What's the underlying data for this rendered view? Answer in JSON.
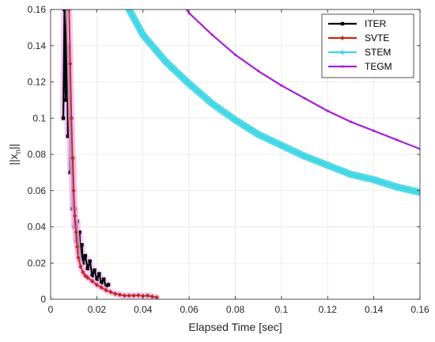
{
  "chart_data": {
    "type": "line",
    "title": "",
    "xlabel": "Elapsed Time [sec]",
    "ylabel": "||x",
    "ylabel_subscript": "n",
    "ylabel_suffix": "||",
    "xlim": [
      0,
      0.16
    ],
    "ylim": [
      0,
      0.16
    ],
    "xticks": [
      0,
      0.02,
      0.04,
      0.06,
      0.08,
      0.1,
      0.12,
      0.14,
      0.16
    ],
    "xtick_labels": [
      "0",
      "0.02",
      "0.04",
      "0.06",
      "0.08",
      "0.1",
      "0.12",
      "0.14",
      "0.16"
    ],
    "yticks": [
      0,
      0.02,
      0.04,
      0.06,
      0.08,
      0.1,
      0.12,
      0.14,
      0.16
    ],
    "ytick_labels": [
      "0",
      "0.02",
      "0.04",
      "0.06",
      "0.08",
      "0.1",
      "0.12",
      "0.14",
      "0.16"
    ],
    "grid": true,
    "legend_position": "top-right",
    "series": [
      {
        "name": "ITER",
        "color": "#000000",
        "marker": "square",
        "halo_color": "#f2b8f2",
        "x": [
          0.0055,
          0.006,
          0.0065,
          0.007,
          0.0075,
          0.008,
          0.0085,
          0.009,
          0.0095,
          0.0098,
          0.0102,
          0.0106,
          0.011,
          0.0115,
          0.012,
          0.0125,
          0.013,
          0.0135,
          0.014,
          0.015,
          0.016,
          0.017,
          0.018,
          0.019,
          0.02,
          0.021,
          0.022,
          0.023,
          0.024,
          0.025
        ],
        "y": [
          0.1,
          0.16,
          0.11,
          0.16,
          0.09,
          0.14,
          0.07,
          0.1,
          0.05,
          0.078,
          0.04,
          0.05,
          0.032,
          0.043,
          0.026,
          0.037,
          0.022,
          0.03,
          0.02,
          0.024,
          0.017,
          0.021,
          0.013,
          0.016,
          0.011,
          0.014,
          0.009,
          0.011,
          0.007,
          0.008
        ]
      },
      {
        "name": "SVTE",
        "color": "#c0291a",
        "marker": "diamond",
        "halo_color": "#f2b8f2",
        "x": [
          0.008,
          0.0085,
          0.009,
          0.0095,
          0.01,
          0.0105,
          0.011,
          0.0115,
          0.012,
          0.013,
          0.014,
          0.015,
          0.016,
          0.018,
          0.02,
          0.022,
          0.024,
          0.026,
          0.028,
          0.03,
          0.032,
          0.034,
          0.036,
          0.038,
          0.04,
          0.042,
          0.044,
          0.046
        ],
        "y": [
          0.16,
          0.13,
          0.1,
          0.078,
          0.06,
          0.046,
          0.037,
          0.029,
          0.023,
          0.018,
          0.015,
          0.013,
          0.012,
          0.01,
          0.008,
          0.0065,
          0.005,
          0.004,
          0.003,
          0.0025,
          0.002,
          0.002,
          0.002,
          0.0022,
          0.0018,
          0.002,
          0.0015,
          0.001
        ]
      },
      {
        "name": "STEM",
        "color": "#3fd6e6",
        "marker": "star",
        "halo_color": "#3fd6e6",
        "x": [
          0.034,
          0.04,
          0.05,
          0.06,
          0.07,
          0.08,
          0.09,
          0.1,
          0.11,
          0.12,
          0.13,
          0.14,
          0.15,
          0.16
        ],
        "y": [
          0.16,
          0.146,
          0.131,
          0.119,
          0.108,
          0.099,
          0.091,
          0.085,
          0.079,
          0.074,
          0.069,
          0.066,
          0.062,
          0.059
        ]
      },
      {
        "name": "TEGM",
        "color": "#a81ed9",
        "marker": "dot",
        "halo_color": "#a81ed9",
        "x": [
          0.059,
          0.06,
          0.07,
          0.08,
          0.09,
          0.1,
          0.11,
          0.12,
          0.13,
          0.14,
          0.15,
          0.16
        ],
        "y": [
          0.16,
          0.158,
          0.146,
          0.135,
          0.126,
          0.118,
          0.111,
          0.104,
          0.098,
          0.093,
          0.088,
          0.083
        ]
      }
    ]
  }
}
